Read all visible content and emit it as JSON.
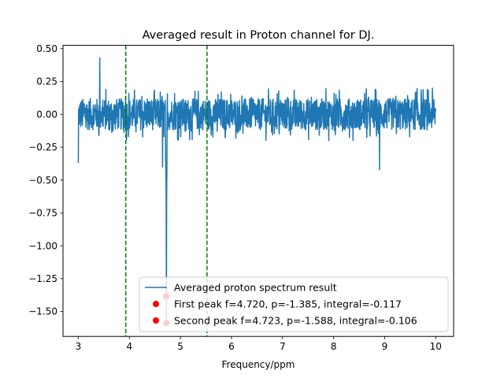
{
  "chart_data": {
    "type": "line",
    "title": "Averaged result in Proton channel for DJ.",
    "xlabel": "Frequency/ppm",
    "ylabel": "",
    "xlim": [
      2.7,
      10.35
    ],
    "ylim": [
      -1.69,
      0.525
    ],
    "xticks": [
      3,
      4,
      5,
      6,
      7,
      8,
      9,
      10
    ],
    "xtick_labels": [
      "3",
      "4",
      "5",
      "6",
      "7",
      "8",
      "9",
      "10"
    ],
    "yticks": [
      0.5,
      0.25,
      0.0,
      -0.25,
      -0.5,
      -0.75,
      -1.0,
      -1.25,
      -1.5
    ],
    "ytick_labels": [
      "0.50",
      "0.25",
      "0.00",
      "−0.25",
      "−0.50",
      "−0.75",
      "−1.00",
      "−1.25",
      "−1.50"
    ],
    "grid": false,
    "legend_position": "lower-right",
    "series": [
      {
        "name": "Averaged proton spectrum result",
        "color": "#1f77b4",
        "x_range": [
          3.0,
          10.0
        ],
        "noise_amplitude": 0.2,
        "features": [
          {
            "x": 3.42,
            "y": 0.43
          },
          {
            "x": 3.0,
            "y": -0.37
          },
          {
            "x": 8.9,
            "y": -0.42
          },
          {
            "x": 4.65,
            "y": -0.4
          },
          {
            "x": 4.72,
            "y": -1.385
          },
          {
            "x": 4.723,
            "y": -1.588
          }
        ]
      }
    ],
    "vlines": [
      {
        "x": 3.93,
        "color": "#008000",
        "style": "dashed"
      },
      {
        "x": 5.52,
        "color": "#008000",
        "style": "dashed"
      }
    ],
    "points": [
      {
        "name": "First peak f=4.720, p=-1.385, integral=-0.117",
        "x": 4.72,
        "y": -1.385,
        "color": "#ff0000"
      },
      {
        "name": "Second peak f=4.723, p=-1.588, integral=-0.106",
        "x": 4.723,
        "y": -1.588,
        "color": "#ff0000"
      }
    ]
  }
}
